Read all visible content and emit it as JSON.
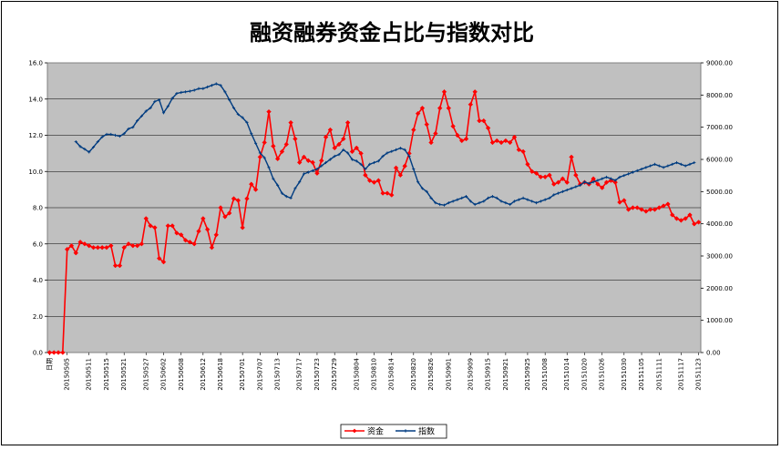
{
  "chart_data": {
    "type": "line",
    "title": "融资融券资金占比与指数对比",
    "y_left": {
      "min": 0,
      "max": 16,
      "step": 2,
      "tick_format": "0.0"
    },
    "y_right": {
      "min": 0,
      "max": 9000,
      "step": 1000,
      "tick_format": "0.00"
    },
    "x_tick_labels": [
      "日期",
      "20150505",
      "20150511",
      "20150515",
      "20150521",
      "20150527",
      "20150602",
      "20150608",
      "20150612",
      "20150618",
      "20150701",
      "20150707",
      "20150713",
      "20150717",
      "20150723",
      "20150729",
      "20150804",
      "20150810",
      "20150814",
      "20150820",
      "20150826",
      "20150901",
      "20150909",
      "20150915",
      "20150921",
      "20150925",
      "20151008",
      "20151014",
      "20151020",
      "20151026",
      "20151030",
      "20151105",
      "20151111",
      "20151117",
      "20151123"
    ],
    "grid": true,
    "legend_position": "bottom",
    "series": [
      {
        "name": "资金",
        "axis": "left",
        "color": "#ff0000",
        "marker": "diamond",
        "values": [
          0,
          0,
          0,
          0,
          5.7,
          5.9,
          5.5,
          6.1,
          6.0,
          5.9,
          5.8,
          5.8,
          5.8,
          5.8,
          5.9,
          4.8,
          4.8,
          5.8,
          6.0,
          5.9,
          5.9,
          6.0,
          7.4,
          7.0,
          6.9,
          5.2,
          5.0,
          7.0,
          7.0,
          6.6,
          6.5,
          6.2,
          6.1,
          6.0,
          6.7,
          7.4,
          6.8,
          5.8,
          6.5,
          8.0,
          7.5,
          7.7,
          8.5,
          8.4,
          6.9,
          8.5,
          9.3,
          9.0,
          10.8,
          11.6,
          13.3,
          11.4,
          10.7,
          11.1,
          11.5,
          12.7,
          11.8,
          10.5,
          10.8,
          10.6,
          10.5,
          9.9,
          10.6,
          11.9,
          12.3,
          11.3,
          11.5,
          11.8,
          12.7,
          11.1,
          11.3,
          11.0,
          9.8,
          9.5,
          9.4,
          9.5,
          8.8,
          8.8,
          8.7,
          10.2,
          9.8,
          10.3,
          11.0,
          12.3,
          13.2,
          13.5,
          12.6,
          11.6,
          12.1,
          13.5,
          14.4,
          13.5,
          12.5,
          12.0,
          11.7,
          11.8,
          13.7,
          14.4,
          12.8,
          12.8,
          12.4,
          11.6,
          11.7,
          11.6,
          11.7,
          11.6,
          11.9,
          11.2,
          11.1,
          10.4,
          10.0,
          9.9,
          9.7,
          9.7,
          9.8,
          9.3,
          9.4,
          9.6,
          9.4,
          10.8,
          9.8,
          9.3,
          9.4,
          9.3,
          9.6,
          9.3,
          9.1,
          9.4,
          9.5,
          9.4,
          8.3,
          8.4,
          7.9,
          8.0,
          8.0,
          7.9,
          7.8,
          7.9,
          7.9,
          8.0,
          8.1,
          8.2,
          7.6,
          7.4,
          7.3,
          7.4,
          7.6,
          7.1,
          7.2
        ]
      },
      {
        "name": "指数",
        "axis": "right",
        "color": "#003c80",
        "marker": "cross",
        "values": [
          null,
          null,
          null,
          null,
          null,
          null,
          6550,
          6400,
          6320,
          6230,
          6380,
          6550,
          6700,
          6780,
          6780,
          6750,
          6720,
          6800,
          6950,
          7000,
          7200,
          7350,
          7500,
          7600,
          7800,
          7850,
          7450,
          7650,
          7900,
          8050,
          8080,
          8100,
          8120,
          8150,
          8200,
          8200,
          8250,
          8300,
          8350,
          8300,
          8100,
          7850,
          7600,
          7400,
          7300,
          7150,
          6800,
          6500,
          6200,
          6050,
          5750,
          5400,
          5200,
          4950,
          4850,
          4800,
          5100,
          5300,
          5550,
          5600,
          5650,
          5700,
          5800,
          5900,
          6000,
          6100,
          6150,
          6300,
          6200,
          6000,
          5950,
          5850,
          5700,
          5850,
          5900,
          5950,
          6100,
          6200,
          6250,
          6300,
          6350,
          6300,
          6100,
          5700,
          5300,
          5100,
          5000,
          4800,
          4650,
          4600,
          4580,
          4650,
          4700,
          4750,
          4800,
          4850,
          4700,
          4600,
          4650,
          4700,
          4800,
          4850,
          4800,
          4700,
          4650,
          4600,
          4700,
          4750,
          4800,
          4750,
          4700,
          4650,
          4700,
          4750,
          4800,
          4900,
          4950,
          5000,
          5050,
          5100,
          5150,
          5200,
          5300,
          5250,
          5300,
          5350,
          5400,
          5450,
          5400,
          5350,
          5450,
          5500,
          5550,
          5600,
          5650,
          5700,
          5750,
          5800,
          5850,
          5800,
          5750,
          5800,
          5850,
          5900,
          5850,
          5800,
          5850,
          5900
        ]
      }
    ]
  }
}
